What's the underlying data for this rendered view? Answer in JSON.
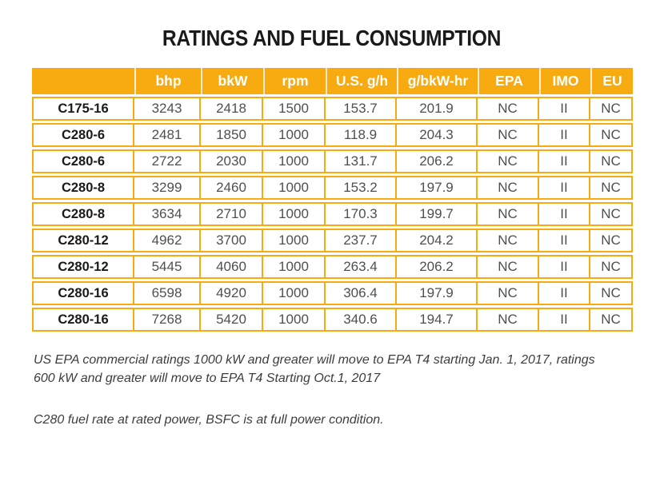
{
  "page": {
    "title": "RATINGS AND FUEL CONSUMPTION"
  },
  "table": {
    "columns": [
      "",
      "bhp",
      "bkW",
      "rpm",
      "U.S. g/h",
      "g/bkW-hr",
      "EPA",
      "IMO",
      "EU"
    ],
    "rows": [
      [
        "C175-16",
        "3243",
        "2418",
        "1500",
        "153.7",
        "201.9",
        "NC",
        "II",
        "NC"
      ],
      [
        "C280-6",
        "2481",
        "1850",
        "1000",
        "118.9",
        "204.3",
        "NC",
        "II",
        "NC"
      ],
      [
        "C280-6",
        "2722",
        "2030",
        "1000",
        "131.7",
        "206.2",
        "NC",
        "II",
        "NC"
      ],
      [
        "C280-8",
        "3299",
        "2460",
        "1000",
        "153.2",
        "197.9",
        "NC",
        "II",
        "NC"
      ],
      [
        "C280-8",
        "3634",
        "2710",
        "1000",
        "170.3",
        "199.7",
        "NC",
        "II",
        "NC"
      ],
      [
        "C280-12",
        "4962",
        "3700",
        "1000",
        "237.7",
        "204.2",
        "NC",
        "II",
        "NC"
      ],
      [
        "C280-12",
        "5445",
        "4060",
        "1000",
        "263.4",
        "206.2",
        "NC",
        "II",
        "NC"
      ],
      [
        "C280-16",
        "6598",
        "4920",
        "1000",
        "306.4",
        "197.9",
        "NC",
        "II",
        "NC"
      ],
      [
        "C280-16",
        "7268",
        "5420",
        "1000",
        "340.6",
        "194.7",
        "NC",
        "II",
        "NC"
      ]
    ]
  },
  "footnotes": {
    "epa": {
      "line1": "US EPA commercial ratings 1000 kW and greater will move to EPA T4 starting Jan. 1, 2017, ratings",
      "line2": "600 kW and greater will move to EPA T4 Starting Oct.1, 2017"
    },
    "fuel": "C280 fuel rate at rated power, BSFC is at full power condition."
  },
  "colors": {
    "accent_orange": "#F7AB10",
    "header_text": "#FFFFFF",
    "model_text": "#1A1A1A",
    "value_text": "#4F4F4F",
    "footnote_text": "#3D3D3D"
  }
}
